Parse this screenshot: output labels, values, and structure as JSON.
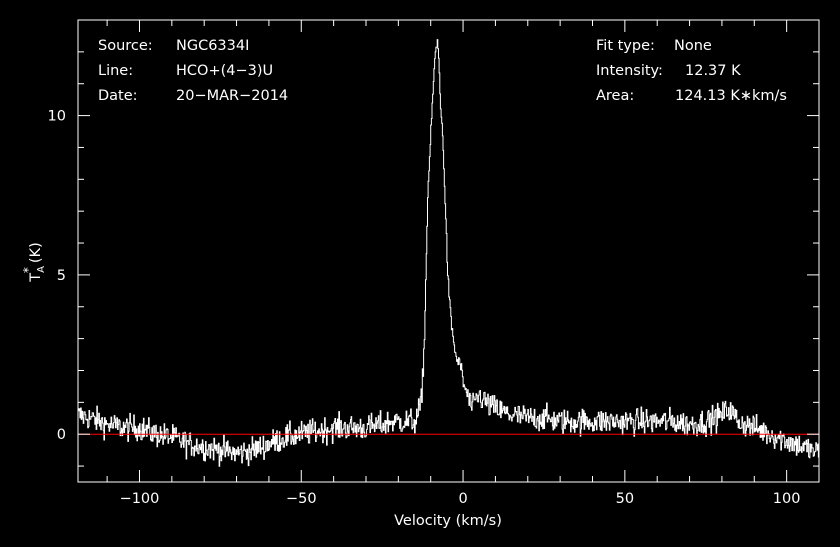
{
  "header_left": [
    {
      "label": "Source:",
      "value": "NGC6334I"
    },
    {
      "label": "Line:",
      "value": "HCO+(4−3)U"
    },
    {
      "label": "Date:",
      "value": "20−MAR−2014"
    }
  ],
  "header_right": [
    {
      "label": "Fit type:",
      "value": "None"
    },
    {
      "label": "Intensity:",
      "value": "12.37 K"
    },
    {
      "label": "Area:",
      "value": "124.13 K∗km/s"
    }
  ],
  "colors": {
    "background": "#000000",
    "trace": "#ffffff",
    "baseline": "#ff0000",
    "axes": "#ffffff"
  },
  "chart_data": {
    "type": "line",
    "title": "",
    "xlabel": "Velocity (km/s)",
    "ylabel_main": "T",
    "ylabel_sup": "*",
    "ylabel_sub": "A",
    "ylabel_unit": "(K)",
    "xlim": [
      -119,
      110
    ],
    "ylim": [
      -1.5,
      13
    ],
    "x_ticks": [
      -100,
      -50,
      0,
      50,
      100
    ],
    "x_tick_labels": [
      "−100",
      "−50",
      "0",
      "50",
      "100"
    ],
    "y_ticks": [
      0,
      5,
      10
    ],
    "y_tick_labels": [
      "0",
      "5",
      "10"
    ],
    "baseline_y": 0,
    "grid": false,
    "legend": "none",
    "series": [
      {
        "x": [
          -119,
          -115,
          -110,
          -105,
          -100,
          -95,
          -90,
          -85,
          -80,
          -75,
          -70,
          -65,
          -60,
          -55,
          -50,
          -45,
          -40,
          -35,
          -30,
          -25,
          -22,
          -20,
          -18,
          -16,
          -15,
          -14,
          -13,
          -12,
          -11,
          -10,
          -9.5,
          -9,
          -8.5,
          -8,
          -7.5,
          -7,
          -6.5,
          -6,
          -5.5,
          -5,
          -4.5,
          -4,
          -3.5,
          -3,
          -2.5,
          -2,
          -1.5,
          -1,
          -0.5,
          0,
          1,
          2,
          3,
          4,
          5,
          6,
          7,
          8,
          10,
          12,
          15,
          20,
          25,
          30,
          35,
          40,
          45,
          50,
          55,
          60,
          65,
          70,
          75,
          80,
          82,
          85,
          90,
          95,
          100,
          105,
          110
        ],
        "y": [
          0.6,
          0.5,
          0.3,
          0.2,
          0.2,
          0.0,
          -0.1,
          -0.3,
          -0.4,
          -0.5,
          -0.6,
          -0.5,
          -0.3,
          -0.1,
          0.0,
          0.1,
          0.2,
          0.2,
          0.2,
          0.3,
          0.4,
          0.4,
          0.4,
          0.4,
          0.4,
          0.6,
          1.0,
          3.0,
          7.5,
          9.5,
          10.5,
          11.5,
          12.0,
          12.37,
          11.6,
          10.3,
          9.5,
          8.5,
          7.0,
          5.5,
          4.5,
          3.8,
          3.3,
          2.9,
          2.6,
          2.3,
          2.3,
          2.2,
          2.0,
          1.6,
          1.3,
          1.0,
          0.8,
          1.1,
          1.2,
          1.1,
          1.0,
          0.9,
          0.8,
          0.7,
          0.6,
          0.5,
          0.5,
          0.4,
          0.4,
          0.4,
          0.4,
          0.4,
          0.4,
          0.4,
          0.4,
          0.3,
          0.4,
          0.6,
          0.8,
          0.4,
          0.2,
          0.0,
          -0.2,
          -0.4,
          -0.6
        ]
      }
    ]
  }
}
